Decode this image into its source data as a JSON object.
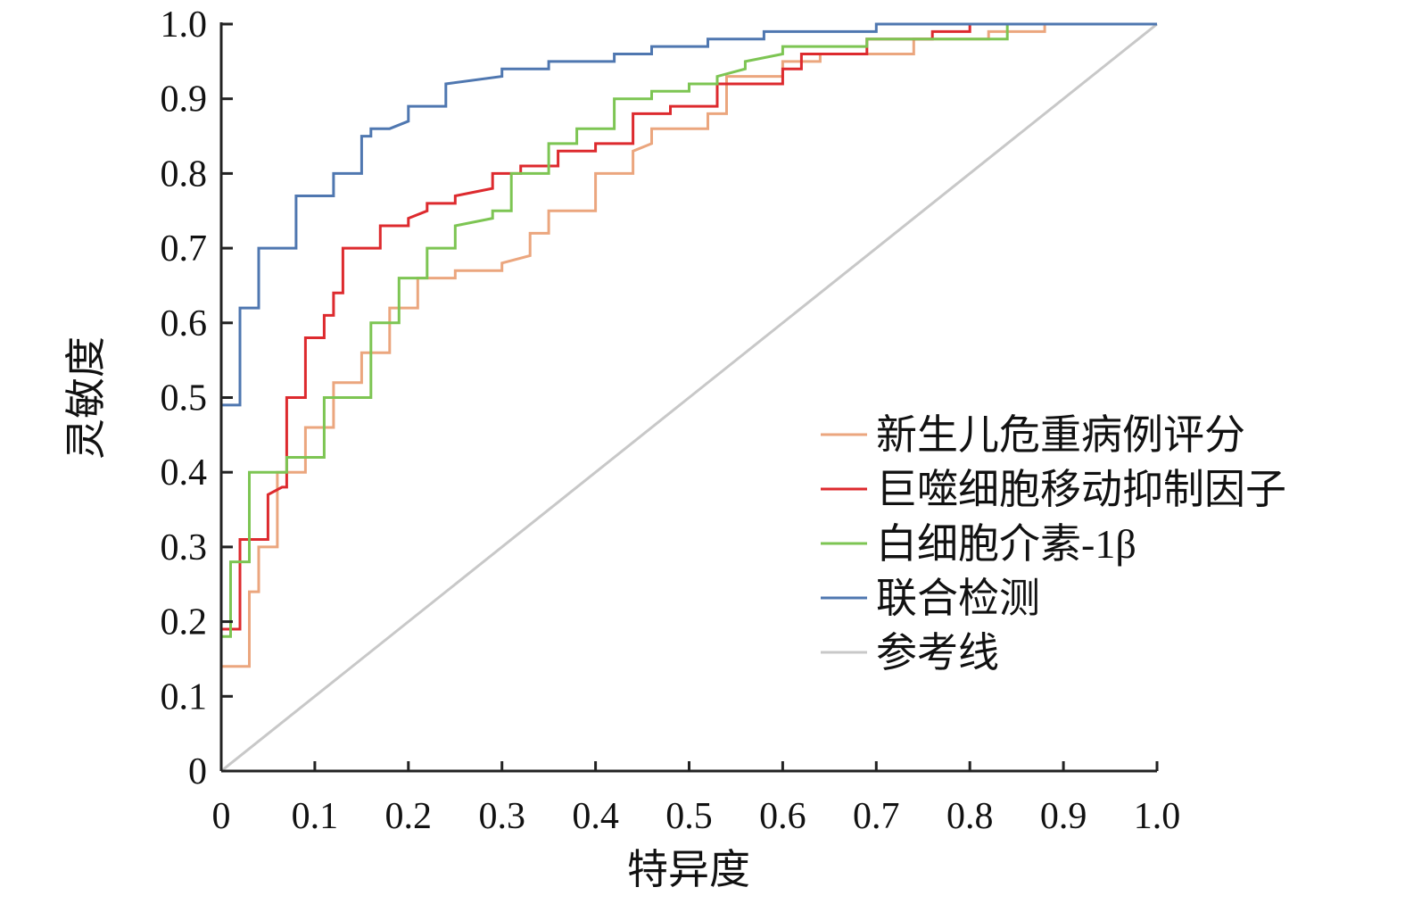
{
  "chart_data": {
    "type": "line",
    "title": "",
    "xlabel": "特异度",
    "ylabel": "灵敏度",
    "xlim": [
      0,
      1.0
    ],
    "ylim": [
      0,
      1.0
    ],
    "xticks": [
      "0",
      "0.1",
      "0.2",
      "0.3",
      "0.4",
      "0.5",
      "0.6",
      "0.7",
      "0.8",
      "0.9",
      "1.0"
    ],
    "yticks": [
      "0",
      "0.1",
      "0.2",
      "0.3",
      "0.4",
      "0.5",
      "0.6",
      "0.7",
      "0.8",
      "0.9",
      "1.0"
    ],
    "grid": false,
    "legend_position": "center-right",
    "series": [
      {
        "name": "新生儿危重病例评分",
        "color": "#eba67e",
        "points": [
          [
            0,
            0.14
          ],
          [
            0.03,
            0.14
          ],
          [
            0.03,
            0.24
          ],
          [
            0.04,
            0.24
          ],
          [
            0.04,
            0.3
          ],
          [
            0.06,
            0.3
          ],
          [
            0.06,
            0.4
          ],
          [
            0.09,
            0.4
          ],
          [
            0.09,
            0.46
          ],
          [
            0.12,
            0.46
          ],
          [
            0.12,
            0.52
          ],
          [
            0.15,
            0.52
          ],
          [
            0.15,
            0.56
          ],
          [
            0.18,
            0.56
          ],
          [
            0.18,
            0.62
          ],
          [
            0.21,
            0.62
          ],
          [
            0.21,
            0.66
          ],
          [
            0.25,
            0.66
          ],
          [
            0.25,
            0.67
          ],
          [
            0.3,
            0.67
          ],
          [
            0.3,
            0.68
          ],
          [
            0.33,
            0.69
          ],
          [
            0.33,
            0.72
          ],
          [
            0.35,
            0.72
          ],
          [
            0.35,
            0.75
          ],
          [
            0.4,
            0.75
          ],
          [
            0.4,
            0.8
          ],
          [
            0.44,
            0.8
          ],
          [
            0.44,
            0.83
          ],
          [
            0.46,
            0.84
          ],
          [
            0.46,
            0.86
          ],
          [
            0.52,
            0.86
          ],
          [
            0.52,
            0.88
          ],
          [
            0.54,
            0.88
          ],
          [
            0.54,
            0.93
          ],
          [
            0.6,
            0.93
          ],
          [
            0.6,
            0.95
          ],
          [
            0.64,
            0.95
          ],
          [
            0.64,
            0.96
          ],
          [
            0.74,
            0.96
          ],
          [
            0.74,
            0.98
          ],
          [
            0.82,
            0.98
          ],
          [
            0.82,
            0.99
          ],
          [
            0.88,
            0.99
          ],
          [
            0.88,
            1.0
          ],
          [
            1.0,
            1.0
          ]
        ]
      },
      {
        "name": "巨噬细胞移动抑制因子",
        "color": "#dd2a2e",
        "points": [
          [
            0,
            0.19
          ],
          [
            0.02,
            0.19
          ],
          [
            0.02,
            0.31
          ],
          [
            0.05,
            0.31
          ],
          [
            0.05,
            0.37
          ],
          [
            0.065,
            0.38
          ],
          [
            0.07,
            0.38
          ],
          [
            0.07,
            0.5
          ],
          [
            0.09,
            0.5
          ],
          [
            0.09,
            0.58
          ],
          [
            0.11,
            0.58
          ],
          [
            0.11,
            0.61
          ],
          [
            0.12,
            0.61
          ],
          [
            0.12,
            0.64
          ],
          [
            0.13,
            0.64
          ],
          [
            0.13,
            0.7
          ],
          [
            0.17,
            0.7
          ],
          [
            0.17,
            0.73
          ],
          [
            0.2,
            0.73
          ],
          [
            0.2,
            0.74
          ],
          [
            0.22,
            0.75
          ],
          [
            0.22,
            0.76
          ],
          [
            0.25,
            0.76
          ],
          [
            0.25,
            0.77
          ],
          [
            0.29,
            0.78
          ],
          [
            0.29,
            0.8
          ],
          [
            0.32,
            0.8
          ],
          [
            0.32,
            0.81
          ],
          [
            0.36,
            0.81
          ],
          [
            0.36,
            0.83
          ],
          [
            0.4,
            0.83
          ],
          [
            0.4,
            0.84
          ],
          [
            0.44,
            0.84
          ],
          [
            0.44,
            0.88
          ],
          [
            0.48,
            0.88
          ],
          [
            0.48,
            0.89
          ],
          [
            0.53,
            0.89
          ],
          [
            0.53,
            0.92
          ],
          [
            0.6,
            0.92
          ],
          [
            0.6,
            0.94
          ],
          [
            0.62,
            0.94
          ],
          [
            0.62,
            0.96
          ],
          [
            0.69,
            0.96
          ],
          [
            0.69,
            0.98
          ],
          [
            0.76,
            0.98
          ],
          [
            0.76,
            0.99
          ],
          [
            0.8,
            0.99
          ],
          [
            0.8,
            1.0
          ],
          [
            1.0,
            1.0
          ]
        ]
      },
      {
        "name": "白细胞介素-1β",
        "color": "#7dc553",
        "points": [
          [
            0,
            0.18
          ],
          [
            0.01,
            0.18
          ],
          [
            0.01,
            0.28
          ],
          [
            0.03,
            0.28
          ],
          [
            0.03,
            0.4
          ],
          [
            0.07,
            0.4
          ],
          [
            0.07,
            0.42
          ],
          [
            0.11,
            0.42
          ],
          [
            0.11,
            0.5
          ],
          [
            0.16,
            0.5
          ],
          [
            0.16,
            0.6
          ],
          [
            0.19,
            0.6
          ],
          [
            0.19,
            0.66
          ],
          [
            0.22,
            0.66
          ],
          [
            0.22,
            0.7
          ],
          [
            0.25,
            0.7
          ],
          [
            0.25,
            0.73
          ],
          [
            0.29,
            0.74
          ],
          [
            0.29,
            0.75
          ],
          [
            0.31,
            0.75
          ],
          [
            0.31,
            0.8
          ],
          [
            0.35,
            0.8
          ],
          [
            0.35,
            0.84
          ],
          [
            0.38,
            0.84
          ],
          [
            0.38,
            0.86
          ],
          [
            0.42,
            0.86
          ],
          [
            0.42,
            0.9
          ],
          [
            0.46,
            0.9
          ],
          [
            0.46,
            0.91
          ],
          [
            0.5,
            0.91
          ],
          [
            0.5,
            0.92
          ],
          [
            0.53,
            0.92
          ],
          [
            0.53,
            0.93
          ],
          [
            0.56,
            0.94
          ],
          [
            0.56,
            0.95
          ],
          [
            0.6,
            0.96
          ],
          [
            0.6,
            0.97
          ],
          [
            0.69,
            0.97
          ],
          [
            0.69,
            0.98
          ],
          [
            0.84,
            0.98
          ],
          [
            0.84,
            1.0
          ],
          [
            1.0,
            1.0
          ]
        ]
      },
      {
        "name": "联合检测",
        "color": "#4f77b0",
        "points": [
          [
            0,
            0.49
          ],
          [
            0.02,
            0.49
          ],
          [
            0.02,
            0.62
          ],
          [
            0.04,
            0.62
          ],
          [
            0.04,
            0.7
          ],
          [
            0.08,
            0.7
          ],
          [
            0.08,
            0.77
          ],
          [
            0.12,
            0.77
          ],
          [
            0.12,
            0.8
          ],
          [
            0.15,
            0.8
          ],
          [
            0.15,
            0.85
          ],
          [
            0.16,
            0.85
          ],
          [
            0.16,
            0.86
          ],
          [
            0.18,
            0.86
          ],
          [
            0.2,
            0.87
          ],
          [
            0.2,
            0.89
          ],
          [
            0.24,
            0.89
          ],
          [
            0.24,
            0.92
          ],
          [
            0.3,
            0.93
          ],
          [
            0.3,
            0.94
          ],
          [
            0.35,
            0.94
          ],
          [
            0.35,
            0.95
          ],
          [
            0.42,
            0.95
          ],
          [
            0.42,
            0.96
          ],
          [
            0.46,
            0.96
          ],
          [
            0.46,
            0.97
          ],
          [
            0.52,
            0.97
          ],
          [
            0.52,
            0.98
          ],
          [
            0.58,
            0.98
          ],
          [
            0.58,
            0.99
          ],
          [
            0.7,
            0.99
          ],
          [
            0.7,
            1.0
          ],
          [
            1.0,
            1.0
          ]
        ]
      },
      {
        "name": "参考线",
        "color": "#c8c8c8",
        "points": [
          [
            0,
            0
          ],
          [
            1.0,
            1.0
          ]
        ]
      }
    ]
  }
}
